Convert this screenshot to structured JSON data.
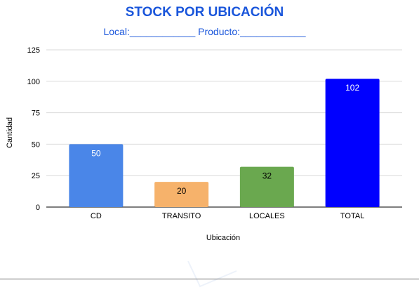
{
  "header": {
    "title": "STOCK POR UBICACIÓN",
    "subtitle": "Local:____________ Producto:____________"
  },
  "chart_data": {
    "type": "bar",
    "categories": [
      "CD",
      "TRANSITO",
      "LOCALES",
      "TOTAL"
    ],
    "values": [
      50,
      20,
      32,
      102
    ],
    "data_labels": [
      "50",
      "20",
      "32",
      "102"
    ],
    "colors": [
      "#4a86e8",
      "#f6b26b",
      "#6aa84f",
      "#0000ff"
    ],
    "label_colors": [
      "#ffffff",
      "#000000",
      "#000000",
      "#ffffff"
    ],
    "xlabel": "Ubicación",
    "ylabel": "Cantidad",
    "ylim": [
      0,
      125
    ],
    "yticks": [
      0,
      25,
      50,
      75,
      100,
      125
    ],
    "grid": true,
    "legend": "none"
  }
}
